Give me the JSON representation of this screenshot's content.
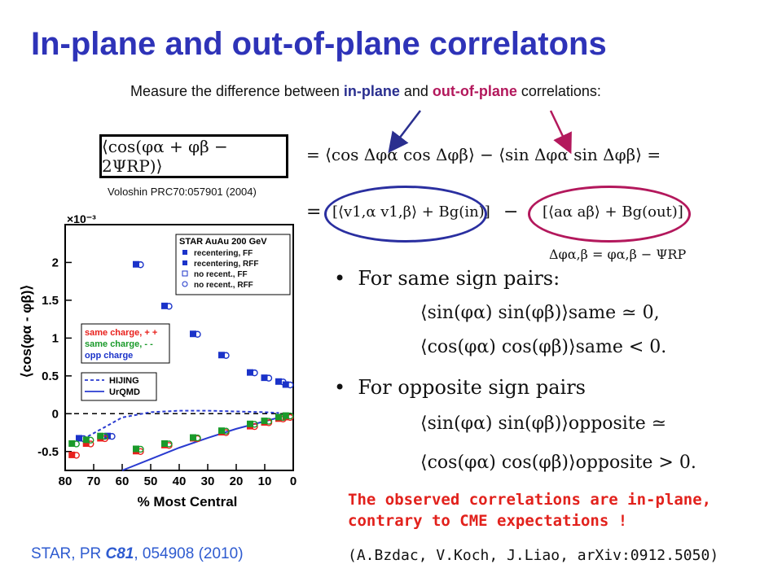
{
  "title": "In-plane and out-of-plane correlatons",
  "measure": {
    "prefix": "Measure the difference between ",
    "in_plane": "in-plane",
    "and": " and ",
    "out_of_plane": "out-of-plane",
    "suffix": " correlations:"
  },
  "equations": {
    "boxed": "⟨cos(φα + φβ − 2ΨRP)⟩",
    "rhs1": "= ⟨cos Δφα cos Δφβ⟩ − ⟨sin Δφα sin Δφβ⟩ =",
    "rhs2_in": "[⟨v1,α v1,β⟩ + Bg(in)]",
    "rhs2_out": "[⟨aα aβ⟩ + Bg(out)]",
    "delta_def": "Δφα,β = φα,β − ΨRP"
  },
  "voloshin_ref": "Voloshin PRC70:057901 (2004)",
  "bullets": {
    "same": "For same sign pairs:",
    "opposite": "For opposite sign pairs",
    "same_eq1": "⟨sin(φα) sin(φβ)⟩same ≃ 0,",
    "same_eq2": "⟨cos(φα) cos(φβ)⟩same < 0.",
    "opp_eq1": "⟨sin(φα) sin(φβ)⟩opposite ≃",
    "opp_eq2": "⟨cos(φα) cos(φβ)⟩opposite > 0."
  },
  "conclusion": "The observed correlations are in-plane, contrary to CME expectations !",
  "citation": "(A.Bzdac, V.Koch, J.Liao, arXiv:0912.5050)",
  "star_ref": {
    "prefix": "STAR, PR ",
    "volume": "C81",
    "suffix": ", 054908 (2010)"
  },
  "chart_data": {
    "type": "scatter",
    "xlabel": "% Most Central",
    "ylabel": "⟨cos(φα - φβ)⟩",
    "y_multiplier": "×10⁻³",
    "xlim": [
      80,
      0
    ],
    "ylim": [
      -0.75,
      2.5
    ],
    "x_ticks": [
      "80",
      "70",
      "60",
      "50",
      "40",
      "30",
      "20",
      "10",
      "0"
    ],
    "y_ticks": [
      "-0.5",
      "0",
      "0.5",
      "1",
      "1.5",
      "2"
    ],
    "legend_top": {
      "header": "STAR AuAu 200 GeV",
      "entries": [
        "recentering, FF",
        "recentering, RFF",
        "no recent., FF",
        "no recent., RFF"
      ]
    },
    "legend_charge": [
      "same charge, + +",
      "same charge, - -",
      "opp charge"
    ],
    "legend_models": [
      "HIJING",
      "UrQMD"
    ],
    "colors": {
      "star": "#1b33c9",
      "same_pp": "#e8201c",
      "same_mm": "#1a9a2a",
      "opp": "#1b33c9",
      "model": "#2a3bd0",
      "same_red": "#e8201c",
      "green": "#1a9a2a"
    },
    "series": [
      {
        "name": "opp charge",
        "x": [
          75,
          65,
          55,
          45,
          35,
          25,
          15,
          10,
          5,
          2.5
        ],
        "y": [
          -0.33,
          -0.3,
          1.97,
          1.42,
          1.05,
          0.77,
          0.54,
          0.47,
          0.42,
          0.38
        ]
      },
      {
        "name": "same charge, + +",
        "x": [
          77.5,
          72.5,
          67.5,
          55,
          45,
          35,
          25,
          15,
          10,
          5,
          2.5
        ],
        "y": [
          -0.55,
          -0.4,
          -0.33,
          -0.5,
          -0.42,
          -0.33,
          -0.25,
          -0.17,
          -0.12,
          -0.07,
          -0.05
        ]
      },
      {
        "name": "same charge, - -",
        "x": [
          77.5,
          72.5,
          67.5,
          55,
          45,
          35,
          25,
          15,
          10,
          5,
          2.5
        ],
        "y": [
          -0.4,
          -0.35,
          -0.3,
          -0.47,
          -0.4,
          -0.32,
          -0.23,
          -0.14,
          -0.1,
          -0.05,
          -0.03
        ]
      }
    ],
    "models": [
      {
        "name": "HIJING",
        "style": "dashed",
        "x": [
          72,
          60,
          50,
          40,
          30,
          20,
          10,
          5
        ],
        "y": [
          -0.3,
          -0.05,
          0.02,
          0.04,
          0.04,
          0.03,
          0.02,
          0.01
        ]
      },
      {
        "name": "UrQMD",
        "style": "solid",
        "x": [
          60,
          50,
          40,
          30,
          20,
          10,
          5
        ],
        "y": [
          -0.75,
          -0.6,
          -0.45,
          -0.32,
          -0.2,
          -0.1,
          -0.05
        ]
      }
    ]
  }
}
